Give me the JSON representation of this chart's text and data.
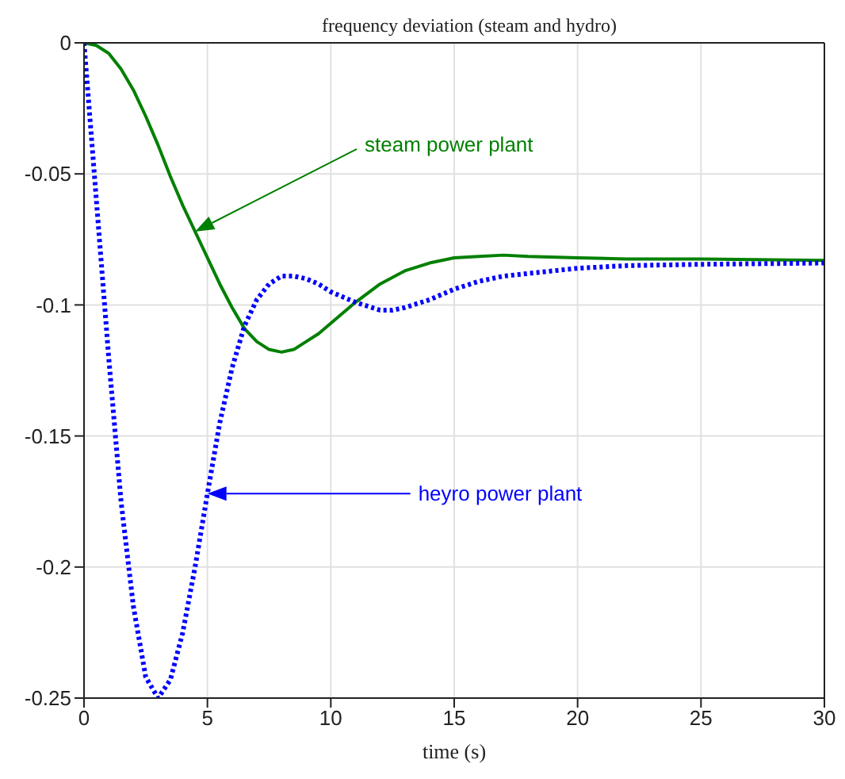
{
  "chart_data": {
    "type": "line",
    "title": "frequency deviation (steam and hydro)",
    "xlabel": "time (s)",
    "series": [
      {
        "name": "steam power plant",
        "color": "#008000",
        "line_style": "solid",
        "x": [
          0,
          0.5,
          1,
          1.5,
          2,
          2.5,
          3,
          3.5,
          4,
          4.5,
          5,
          5.5,
          6,
          6.5,
          7,
          7.5,
          8,
          8.5,
          9,
          9.5,
          10,
          11,
          12,
          13,
          14,
          15,
          16,
          17,
          18,
          20,
          22,
          25,
          30
        ],
        "values": [
          0,
          -0.001,
          -0.004,
          -0.01,
          -0.018,
          -0.028,
          -0.039,
          -0.051,
          -0.062,
          -0.072,
          -0.082,
          -0.092,
          -0.101,
          -0.109,
          -0.114,
          -0.117,
          -0.118,
          -0.117,
          -0.114,
          -0.111,
          -0.107,
          -0.099,
          -0.092,
          -0.087,
          -0.084,
          -0.082,
          -0.0815,
          -0.081,
          -0.0815,
          -0.082,
          -0.0825,
          -0.0825,
          -0.083
        ]
      },
      {
        "name": "heyro power plant",
        "color": "#0000ff",
        "line_style": "dotted",
        "x": [
          0,
          0.25,
          0.5,
          0.75,
          1,
          1.5,
          2,
          2.5,
          3,
          3.5,
          4,
          4.5,
          5,
          5.5,
          6,
          6.5,
          7,
          7.5,
          8,
          8.5,
          9,
          9.5,
          10,
          11,
          12,
          12.5,
          13,
          14,
          15,
          16,
          17,
          18,
          20,
          22,
          25,
          30
        ],
        "values": [
          0,
          -0.03,
          -0.06,
          -0.09,
          -0.12,
          -0.175,
          -0.215,
          -0.242,
          -0.25,
          -0.243,
          -0.225,
          -0.2,
          -0.172,
          -0.145,
          -0.124,
          -0.108,
          -0.098,
          -0.092,
          -0.089,
          -0.089,
          -0.09,
          -0.092,
          -0.095,
          -0.099,
          -0.102,
          -0.102,
          -0.101,
          -0.098,
          -0.094,
          -0.091,
          -0.089,
          -0.088,
          -0.086,
          -0.085,
          -0.0845,
          -0.084
        ]
      }
    ],
    "xlim": [
      0,
      30
    ],
    "xticks": [
      0,
      5,
      10,
      15,
      20,
      25,
      30
    ],
    "ylim": [
      -0.25,
      0
    ],
    "yticks": [
      -0.25,
      -0.2,
      -0.15,
      -0.1,
      -0.05,
      0
    ],
    "grid": true,
    "legend": false,
    "marker": "none"
  }
}
